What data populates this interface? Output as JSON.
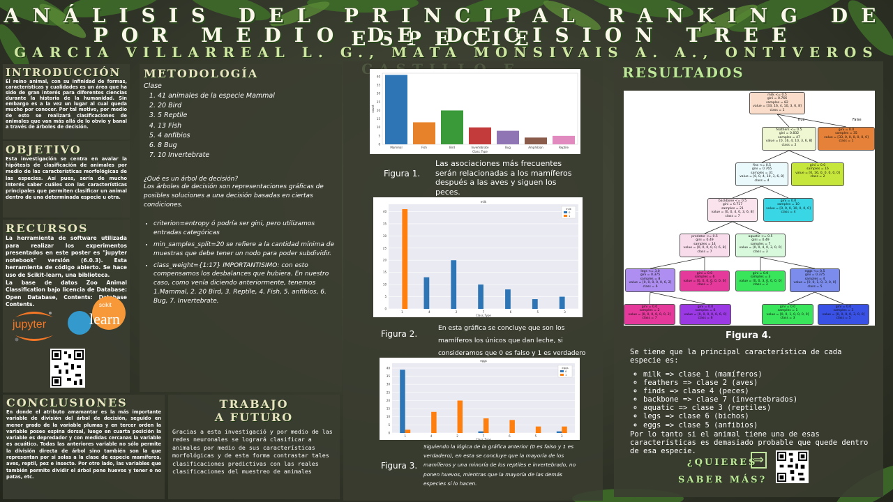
{
  "header": {
    "title_line1": "ANÁLISIS DEL PRINCIPAL RANKING DE ESPECIE",
    "title_line2": "POR MEDIO DE DECISION TREE",
    "authors": "GARCIA VILLARREAL L. G., MATA MONSIVAIS A. A., ONTIVEROS CASTILLO E."
  },
  "introduccion": {
    "title": "INTRODUCCIÓN",
    "text": "El reino animal, con su infinidad de formas, características y cualidades es un área que ha sido de gran interés para diferentes ciencias durante la historia de la humanidad. Sin embargo es a la vez un lugar al cual queda mucho por conocer. Por tal motivo, por medio de esto se realizará clasificaciones de animales que van más allá de lo obvio y banal a través de árboles de decisión."
  },
  "objetivo": {
    "title": "OBJETIVO",
    "text": "Esta investigación se centra en avalar la hipótesis de clasificación de animales por medio de las características morfológicas de las especies. Así pues, sería de mucho interés saber cuáles son las características principales que permiten clasificar un animal dentro de una determinada especie u otra."
  },
  "recursos": {
    "title": "RECURSOS",
    "text1": "La herramienta de software utilizada para realizar los experimentos presentados en este poster es \"jupyter notebook\" versión (6.0.3). Esta herramienta de código abierto. Se hace uso de Scikit-learn, una biblioteca.",
    "text2": "La base de datos Zoo Animal Classification bajo licencia de Database: Open Database, Contents: Database Contents.",
    "jupyter_logo": "jupyter",
    "sklearn_logo_small": "scikit",
    "sklearn_logo_big": "learn"
  },
  "metodologia": {
    "title": "METODOLOGÍA",
    "clase_label": "Clase",
    "clases": [
      "41 animales de la especie Mammal",
      "20 Bird",
      "5 Reptile",
      "13 Fish",
      "4 anfibios",
      "8 Bug",
      "10 Invertebrate"
    ],
    "question": "¿Qué es un árbol de decisión?",
    "definition": "Los árboles de decisión son representaciones gráficas de posibles soluciones a una decisión basadas en ciertas condiciones.",
    "bullets": [
      "criterion=entropy ó podría ser gini, pero utilizamos entradas categóricas",
      "min_samples_split=20 se refiere a la cantidad mínima de muestras que debe tener un nodo para poder subdividir.",
      "class_weight={1:17} IMPORTANTISIMO: con esto compensamos los desbalances que hubiera. En nuestro caso, como venía diciendo anteriormente, tenemos 1.Mammal, 2. 20 Bird, 3. Reptile, 4. Fish, 5. anfibios, 6. Bug, 7. Invertebrate."
    ]
  },
  "figures": {
    "fig1_label": "Figura 1.",
    "fig1_caption": "Las asociaciones más frecuentes serán relacionadas a los mamíferos después a las aves y siguen los peces.",
    "fig2_label": "Figura 2.",
    "fig2_caption": "En esta gráfica se concluye que son los mamíferos los únicos que dan leche, si consideramos que 0 es falso y 1 es verdadero",
    "fig3_label": "Figura 3.",
    "fig3_caption": "Siguiendo la lógica de la gráfica anterior (0 es falso y 1 es verdadero), en esta se concluye que la mayoría de los mamíferos y una minoría de los reptiles e invertebrado, no ponen huevos, mientras que la mayoría de las demás especies sí lo hacen.",
    "fig4_label": "Figura 4."
  },
  "chart_data": [
    {
      "type": "bar",
      "categories": [
        "Mammal",
        "Fish",
        "Bird",
        "Invertebrate",
        "Bug",
        "Amphibian",
        "Reptile"
      ],
      "values": [
        41,
        13,
        20,
        10,
        8,
        4,
        5
      ],
      "xlabel": "Class_Type",
      "ylabel": "count",
      "ylim": [
        0,
        40
      ],
      "colors": [
        "#2e75b6",
        "#e8822a",
        "#3a9a3a",
        "#c33b3b",
        "#9075b5",
        "#8a5a4a",
        "#e08ac0"
      ]
    },
    {
      "type": "bar",
      "title": "milk",
      "categories": [
        "1",
        "4",
        "2",
        "7",
        "6",
        "5",
        "3"
      ],
      "xlabel": "Class_Type",
      "series": [
        {
          "name": "0",
          "values": [
            0,
            13,
            20,
            10,
            8,
            4,
            5
          ],
          "color": "#2e75b6"
        },
        {
          "name": "1",
          "values": [
            41,
            0,
            0,
            0,
            0,
            0,
            0
          ],
          "color": "#ff7f0e"
        }
      ],
      "ylim": [
        0,
        40
      ],
      "legend": "top-right",
      "legend_title": "milk"
    },
    {
      "type": "bar",
      "title": "eggs",
      "categories": [
        "1",
        "4",
        "2",
        "7",
        "6",
        "5",
        "3"
      ],
      "xlabel": "Class_Type",
      "series": [
        {
          "name": "0",
          "values": [
            39,
            0,
            0,
            1,
            0,
            0,
            1
          ],
          "color": "#2e75b6"
        },
        {
          "name": "1",
          "values": [
            2,
            13,
            20,
            9,
            8,
            4,
            4
          ],
          "color": "#ff7f0e"
        }
      ],
      "ylim": [
        0,
        40
      ],
      "legend": "top-right",
      "legend_title": "eggs"
    }
  ],
  "tree": {
    "true_label": "True",
    "false_label": "False",
    "nodes": [
      {
        "id": "n0",
        "lines": [
          "milk <= 0.5",
          "gini = 0.766",
          "samples = 82",
          "value = [33, 16, 4, 10, 3, 6, 8]",
          "class = 1"
        ],
        "color": "#f9dcc9"
      },
      {
        "id": "n1",
        "lines": [
          "feathers <= 0.5",
          "gini = 0.832",
          "samples = 47",
          "value = [0, 16, 4, 10, 3, 6, 8]",
          "class = 2"
        ],
        "color": "#eef7d2"
      },
      {
        "id": "n2",
        "lines": [
          "gini = 0.0",
          "samples = 35",
          "value = [33, 0, 0, 0, 0, 0, 0]",
          "class = 1"
        ],
        "color": "#e58139"
      },
      {
        "id": "n3",
        "lines": [
          "fins <= 0.5",
          "gini = 0.765",
          "samples = 31",
          "value = [0, 0, 4, 10, 3, 6, 8]",
          "class = 4"
        ],
        "color": "#e9f9fc"
      },
      {
        "id": "n4",
        "lines": [
          "gini = 0.0",
          "samples = 16",
          "value = [0, 16, 0, 0, 0, 0, 0]",
          "class = 2"
        ],
        "color": "#c7e63b"
      },
      {
        "id": "n5",
        "lines": [
          "backbone <= 0.5",
          "gini = 0.717",
          "samples = 21",
          "value = [0, 0, 4, 0, 3, 6, 8]",
          "class = 7"
        ],
        "color": "#fbe3ee"
      },
      {
        "id": "n6",
        "lines": [
          "gini = 0.0",
          "samples = 10",
          "value = [0, 0, 0, 10, 0, 0, 0]",
          "class = 4"
        ],
        "color": "#39d7e5"
      },
      {
        "id": "n7",
        "lines": [
          "predator <= 0.5",
          "gini = 0.49",
          "samples = 14",
          "value = [0, 0, 0, 0, 0, 6, 8]",
          "class = 7"
        ],
        "color": "#f9dcec"
      },
      {
        "id": "n8",
        "lines": [
          "aquatic <= 0.5",
          "gini = 0.49",
          "samples = 7",
          "value = [0, 0, 4, 0, 3, 0, 0]",
          "class = 3"
        ],
        "color": "#d8f9dc"
      },
      {
        "id": "n9",
        "lines": [
          "legs <= 3.0",
          "gini = 0.375",
          "samples = 8",
          "value = [0, 0, 0, 0, 0, 6, 2]",
          "class = 6"
        ],
        "color": "#ae8ef0"
      },
      {
        "id": "n10",
        "lines": [
          "gini = 0.0",
          "samples = 6",
          "value = [0, 0, 0, 0, 0, 0, 6]",
          "class = 7"
        ],
        "color": "#e5399b"
      },
      {
        "id": "n11",
        "lines": [
          "gini = 0.0",
          "samples = 3",
          "value = [0, 0, 3, 0, 0, 0, 0]",
          "class = 3"
        ],
        "color": "#39e55a"
      },
      {
        "id": "n12",
        "lines": [
          "eggs <= 0.5",
          "gini = 0.375",
          "samples = 4",
          "value = [0, 0, 1, 0, 3, 0, 0]",
          "class = 5"
        ],
        "color": "#7b8cec"
      },
      {
        "id": "n13",
        "lines": [
          "gini = 0.0",
          "samples = 2",
          "value = [0, 0, 0, 0, 0, 0, 2]",
          "class = 7"
        ],
        "color": "#e5399b"
      },
      {
        "id": "n14",
        "lines": [
          "gini = 0.0",
          "samples = 6",
          "value = [0, 0, 0, 0, 0, 6, 0]",
          "class = 6"
        ],
        "color": "#9b39e5"
      },
      {
        "id": "n15",
        "lines": [
          "gini = 0.0",
          "samples = 1",
          "value = [0, 0, 1, 0, 0, 0, 0]",
          "class = 3"
        ],
        "color": "#39e55a"
      },
      {
        "id": "n16",
        "lines": [
          "gini = 0.0",
          "samples = 3",
          "value = [0, 0, 0, 0, 3, 0, 0]",
          "class = 5"
        ],
        "color": "#3951e5"
      }
    ]
  },
  "resultados": {
    "title": "RESULTADOS",
    "intro": "Se tiene que la principal característica de cada especie es:",
    "items": [
      "milk => clase 1 (mamíferos)",
      "feathers => clase 2 (aves)",
      "finds  => clase 4 (peces)",
      "backbone  => clase 7 (invertebrados)",
      "aquatic => clase 3 (reptiles)",
      "legs => clase 6 (bichos)",
      "eggs => clase 5 (anfibios)"
    ],
    "conclusion": "Por lo tanto si el animal tiene una de esas características es demasiado probable que quede dentro de esa especie.",
    "saber1": "¿QUIERES",
    "saber2": "SABER MÁS?",
    "arrow": "⇒"
  },
  "conclusiones": {
    "title": "CONCLUSIONES",
    "text": "En donde el atributo amamantar es la más importante variable de división del árbol de decisión, seguido en menor grado de la variable plumas y en tercer orden la variable posee espina dorsal, luego en cuarta posición la variable es depredador y con medidas cercanas la variable es acuático. Todas las anteriores variable no sólo permite la división directa de árbol sino también son la que representan por si solas a la clase de especie mamíferos, aves, reptil, pez e insecto. Por otro lado, las variables que también permite dividir el árbol pone huevos y tener o no patas, etc."
  },
  "trabajo": {
    "title1": "TRABAJO",
    "title2": "A FUTURO",
    "text": "Gracias a esta investigació y por medio de las redes neuronales se logrará clasificar a animales por medio de sus características morfológicas y de esta forma contrastar tales clasificaciones predictivas con las reales clasificaciones del muestreo de animales"
  }
}
